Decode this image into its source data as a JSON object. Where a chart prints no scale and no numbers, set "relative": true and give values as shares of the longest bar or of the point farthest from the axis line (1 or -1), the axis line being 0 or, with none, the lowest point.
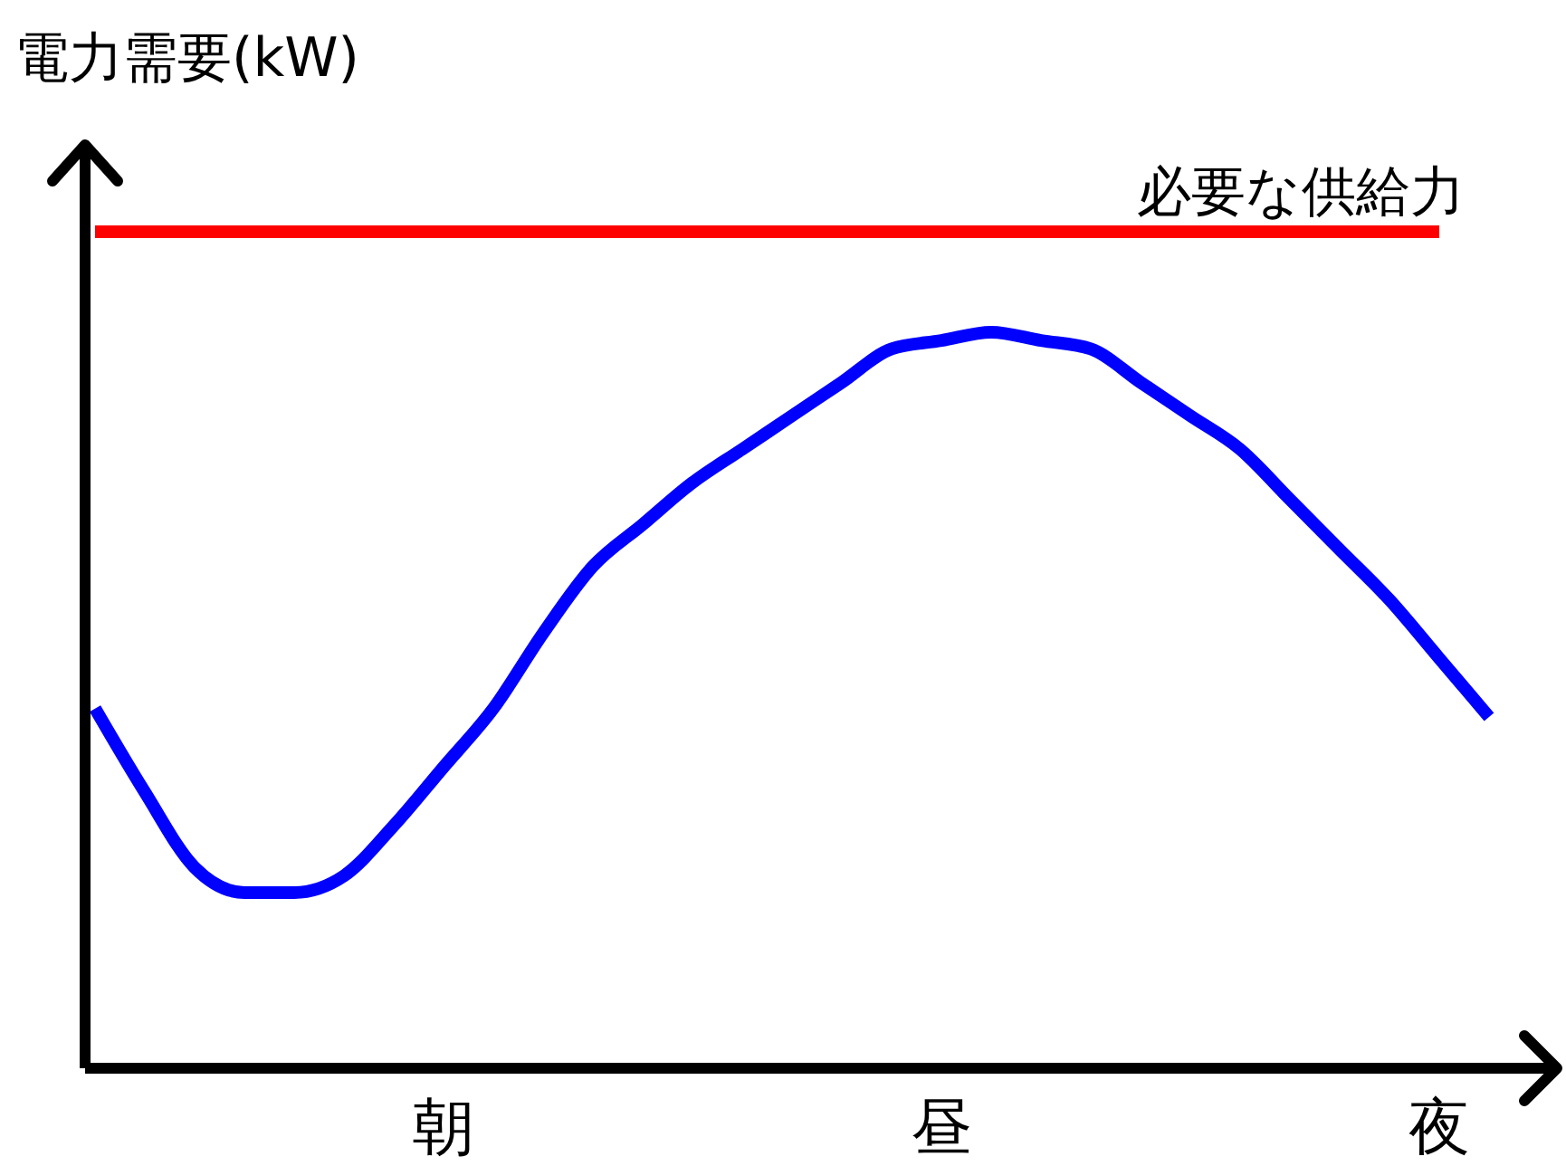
{
  "chart_data": {
    "type": "line",
    "relative": true,
    "ylabel": "電力需要(kW)",
    "categories": [
      null,
      null,
      null,
      null,
      null,
      null,
      null,
      "朝",
      null,
      null,
      null,
      null,
      null,
      null,
      null,
      null,
      null,
      "昼",
      null,
      null,
      null,
      null,
      null,
      null,
      null,
      null,
      null,
      "夜",
      null
    ],
    "series": [
      {
        "name": "必要な供給力",
        "color": "#ff0000",
        "values": [
          1,
          1,
          1,
          1,
          1,
          1,
          1,
          1,
          1,
          1,
          1,
          1,
          1,
          1,
          1,
          1,
          1,
          1,
          1,
          1,
          1,
          1,
          1,
          1,
          1,
          1,
          1,
          1,
          null
        ]
      },
      {
        "color": "#0000ff",
        "values": [
          0.43,
          0.33,
          0.24,
          0.21,
          0.21,
          0.23,
          0.29,
          0.36,
          0.43,
          0.52,
          0.6,
          0.65,
          0.7,
          0.74,
          0.78,
          0.82,
          0.86,
          0.87,
          0.88,
          0.87,
          0.86,
          0.82,
          0.78,
          0.74,
          0.68,
          0.62,
          0.56,
          0.49,
          0.42
        ]
      }
    ],
    "marker": "none",
    "line_style": "solid"
  }
}
